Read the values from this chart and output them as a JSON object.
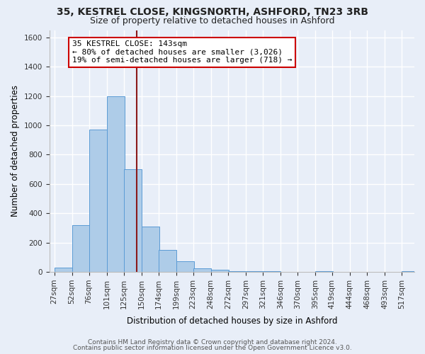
{
  "title": "35, KESTREL CLOSE, KINGSNORTH, ASHFORD, TN23 3RB",
  "subtitle": "Size of property relative to detached houses in Ashford",
  "xlabel": "Distribution of detached houses by size in Ashford",
  "ylabel": "Number of detached properties",
  "bar_values": [
    30,
    320,
    970,
    1200,
    700,
    310,
    150,
    75,
    25,
    15,
    5,
    5,
    5,
    0,
    0,
    5,
    0,
    0,
    0,
    0,
    5
  ],
  "bin_left_edges": [
    27,
    52,
    76,
    101,
    125,
    150,
    174,
    199,
    223,
    248,
    272,
    297,
    321,
    346,
    370,
    395,
    419,
    444,
    468,
    493,
    517
  ],
  "bin_width": 25,
  "tick_positions": [
    27,
    52,
    76,
    101,
    125,
    150,
    174,
    199,
    223,
    248,
    272,
    297,
    321,
    346,
    370,
    395,
    419,
    444,
    468,
    493,
    517
  ],
  "tick_labels": [
    "27sqm",
    "52sqm",
    "76sqm",
    "101sqm",
    "125sqm",
    "150sqm",
    "174sqm",
    "199sqm",
    "223sqm",
    "248sqm",
    "272sqm",
    "297sqm",
    "321sqm",
    "346sqm",
    "370sqm",
    "395sqm",
    "419sqm",
    "444sqm",
    "468sqm",
    "493sqm",
    "517sqm"
  ],
  "bar_color": "#aecce8",
  "bar_edge_color": "#5b9bd5",
  "vline_x": 143,
  "vline_color": "#8b1a1a",
  "annotation_title": "35 KESTREL CLOSE: 143sqm",
  "annotation_line1": "← 80% of detached houses are smaller (3,026)",
  "annotation_line2": "19% of semi-detached houses are larger (718) →",
  "annotation_box_color": "#ffffff",
  "annotation_box_edge": "#cc0000",
  "ylim": [
    0,
    1650
  ],
  "yticks": [
    0,
    200,
    400,
    600,
    800,
    1000,
    1200,
    1400,
    1600
  ],
  "xlim_min": 20,
  "xlim_max": 535,
  "bg_color": "#e8eef8",
  "grid_color": "#ffffff",
  "footer1": "Contains HM Land Registry data © Crown copyright and database right 2024.",
  "footer2": "Contains public sector information licensed under the Open Government Licence v3.0."
}
